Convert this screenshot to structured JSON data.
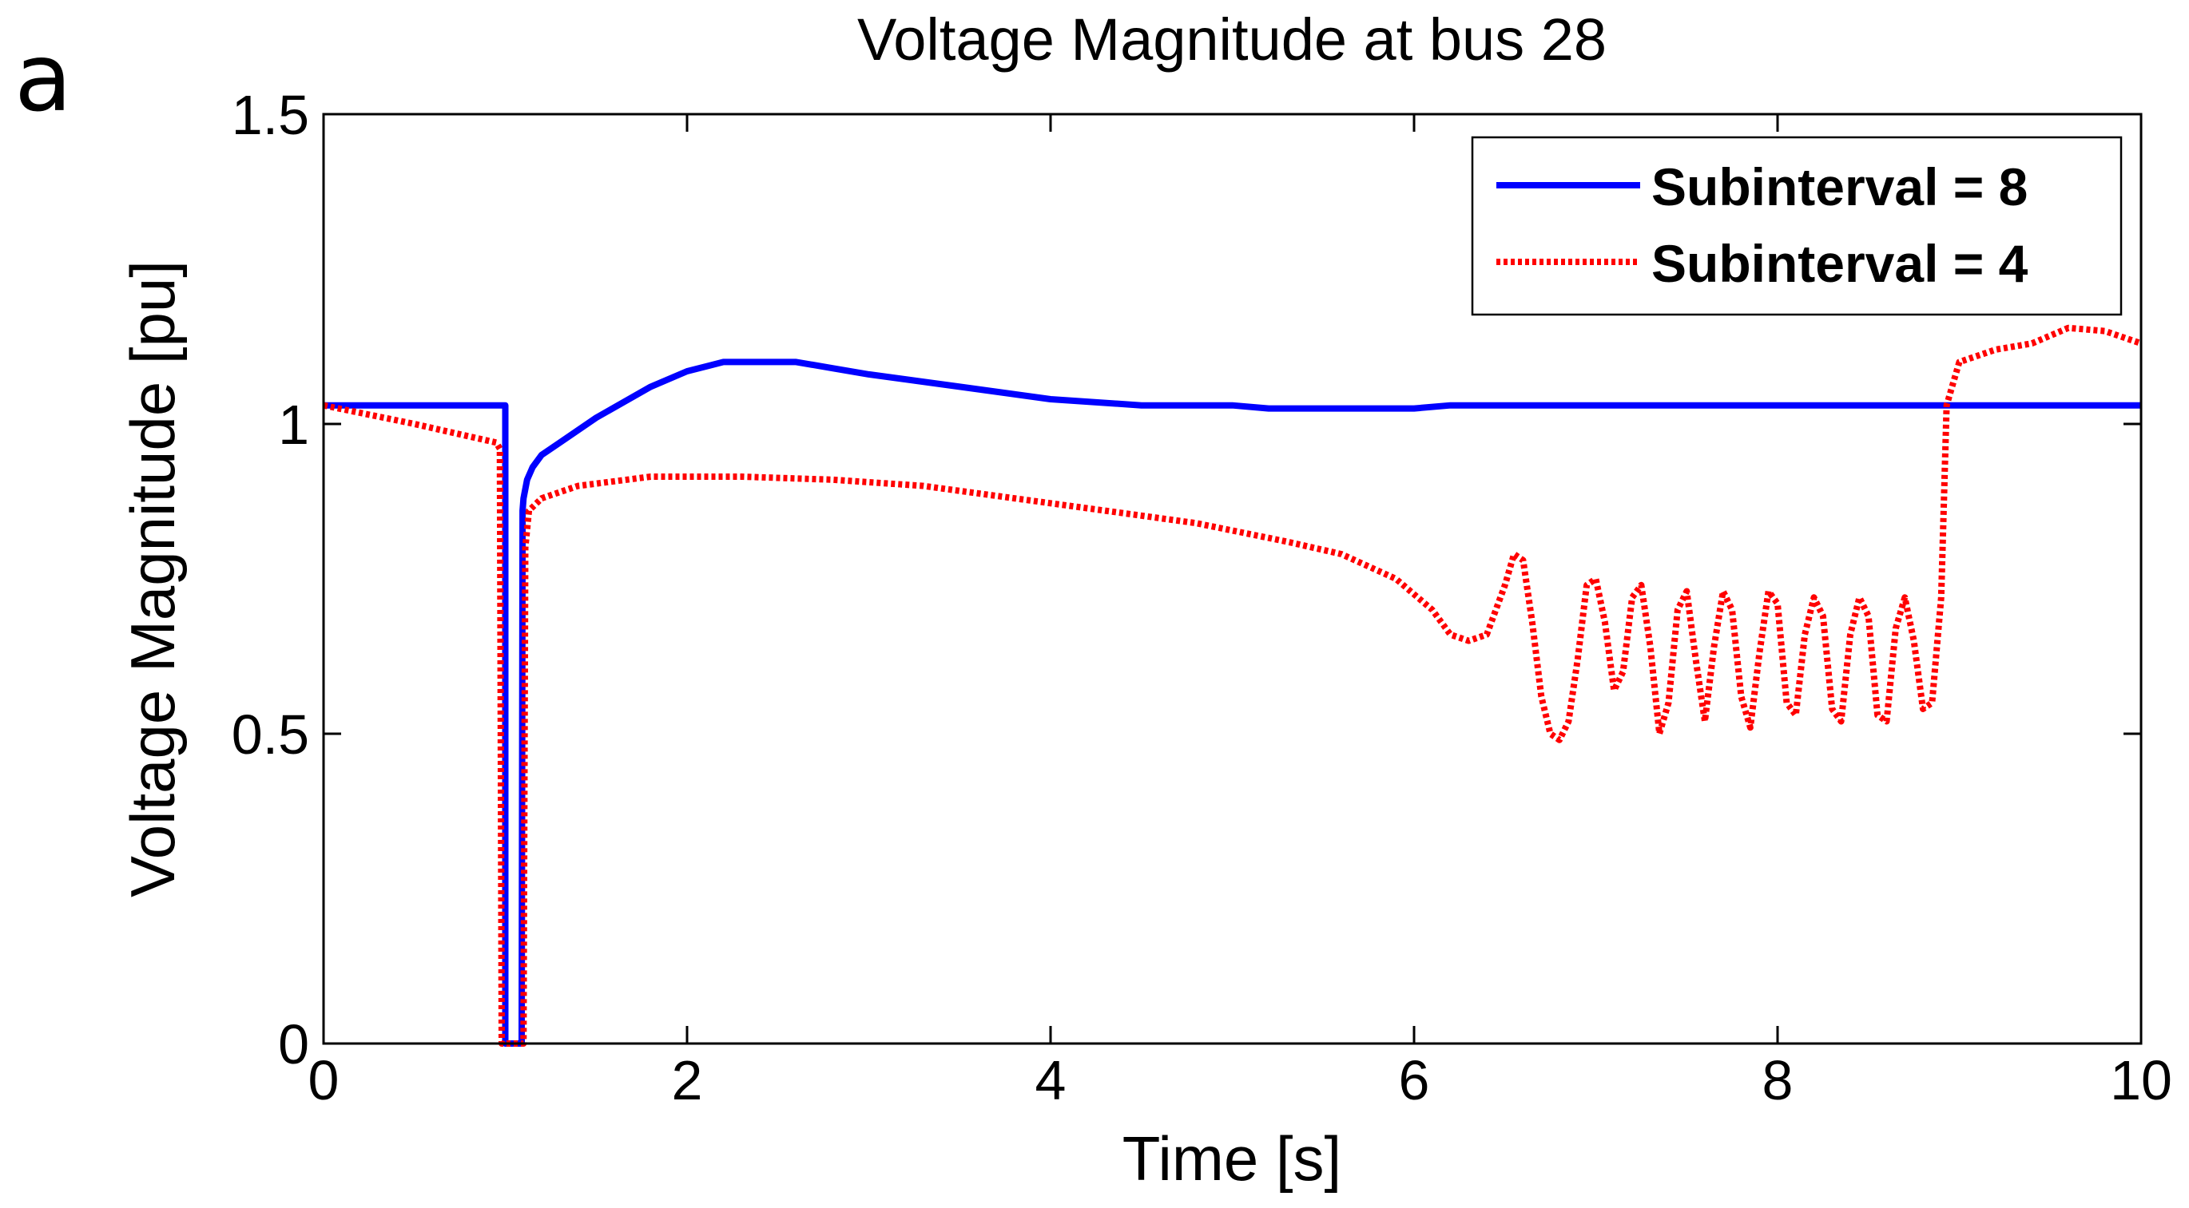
{
  "panel_label": "a",
  "chart_data": {
    "type": "line",
    "title": "Voltage Magnitude at bus 28",
    "xlabel": "Time [s]",
    "ylabel": "Voltage Magnitude [pu]",
    "xlim": [
      0,
      10
    ],
    "ylim": [
      0,
      1.5
    ],
    "xticks": [
      0,
      2,
      4,
      6,
      8,
      10
    ],
    "yticks": [
      0,
      0.5,
      1,
      1.5
    ],
    "xtick_labels": [
      "0",
      "2",
      "4",
      "6",
      "8",
      "10"
    ],
    "ytick_labels": [
      "0",
      "0.5",
      "1",
      "1.5"
    ],
    "grid": false,
    "legend_position": "top-right",
    "series": [
      {
        "name": "Subinterval = 8",
        "color": "#0000ff",
        "style": "solid",
        "x": [
          0,
          0.99,
          1.0,
          1.0,
          1.09,
          1.095,
          1.1,
          1.12,
          1.15,
          1.2,
          1.3,
          1.5,
          1.8,
          2.0,
          2.2,
          2.6,
          2.8,
          3.0,
          3.5,
          4.0,
          4.5,
          5.0,
          5.2,
          6.0,
          6.2,
          7.0,
          8.0,
          9.0,
          10.0
        ],
        "y": [
          1.03,
          1.03,
          1.03,
          0,
          0,
          0.86,
          0.88,
          0.91,
          0.93,
          0.95,
          0.97,
          1.01,
          1.06,
          1.085,
          1.1,
          1.1,
          1.09,
          1.08,
          1.06,
          1.04,
          1.03,
          1.03,
          1.025,
          1.025,
          1.03,
          1.03,
          1.03,
          1.03,
          1.03
        ]
      },
      {
        "name": "Subinterval = 4",
        "color": "#ff0000",
        "style": "dotted",
        "x": [
          0,
          0.5,
          0.95,
          0.97,
          0.98,
          1.1,
          1.11,
          1.13,
          1.2,
          1.4,
          1.8,
          2.3,
          2.8,
          3.3,
          3.8,
          4.3,
          4.8,
          5.3,
          5.6,
          5.9,
          6.1,
          6.2,
          6.3,
          6.4,
          6.5,
          6.55,
          6.6,
          6.65,
          6.7,
          6.75,
          6.8,
          6.85,
          6.9,
          6.95,
          7.0,
          7.05,
          7.1,
          7.15,
          7.2,
          7.25,
          7.3,
          7.35,
          7.4,
          7.45,
          7.5,
          7.55,
          7.6,
          7.65,
          7.7,
          7.75,
          7.8,
          7.85,
          7.9,
          7.95,
          8.0,
          8.05,
          8.1,
          8.15,
          8.2,
          8.25,
          8.3,
          8.35,
          8.4,
          8.45,
          8.5,
          8.55,
          8.6,
          8.65,
          8.7,
          8.75,
          8.8,
          8.85,
          8.9,
          8.93,
          9.0,
          9.2,
          9.4,
          9.6,
          9.8,
          10.0
        ],
        "y": [
          1.03,
          1.0,
          0.97,
          0.96,
          0,
          0,
          0.8,
          0.86,
          0.88,
          0.9,
          0.915,
          0.915,
          0.91,
          0.9,
          0.88,
          0.86,
          0.84,
          0.81,
          0.79,
          0.75,
          0.7,
          0.66,
          0.65,
          0.66,
          0.74,
          0.79,
          0.78,
          0.68,
          0.56,
          0.5,
          0.49,
          0.52,
          0.62,
          0.74,
          0.75,
          0.68,
          0.57,
          0.6,
          0.72,
          0.74,
          0.64,
          0.5,
          0.55,
          0.7,
          0.73,
          0.62,
          0.52,
          0.64,
          0.73,
          0.7,
          0.56,
          0.51,
          0.63,
          0.73,
          0.71,
          0.55,
          0.53,
          0.66,
          0.72,
          0.69,
          0.54,
          0.52,
          0.66,
          0.72,
          0.69,
          0.53,
          0.52,
          0.67,
          0.72,
          0.65,
          0.54,
          0.55,
          0.72,
          1.03,
          1.1,
          1.12,
          1.13,
          1.155,
          1.15,
          1.13
        ]
      }
    ]
  }
}
